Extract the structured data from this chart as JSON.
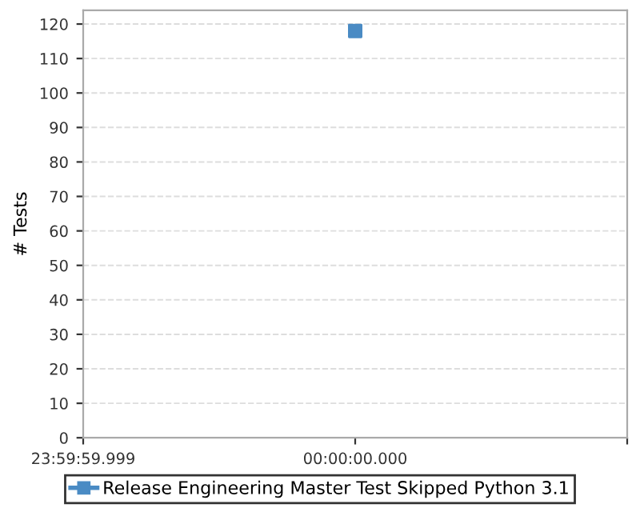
{
  "chart_data": {
    "type": "scatter",
    "ylabel": "# Tests",
    "categories": [
      "23:59:59.999",
      "00:00:00.000",
      null
    ],
    "series": [
      {
        "name": "Release Engineering Master Test Skipped Python 3.1",
        "color": "#4a8bc4",
        "values": [
          null,
          118,
          null
        ]
      }
    ],
    "ylim": [
      0,
      124
    ],
    "yticks": [
      0,
      10,
      20,
      30,
      40,
      50,
      60,
      70,
      80,
      90,
      100,
      110,
      120
    ],
    "grid": "y",
    "legend": "bottom",
    "marker": "square"
  }
}
